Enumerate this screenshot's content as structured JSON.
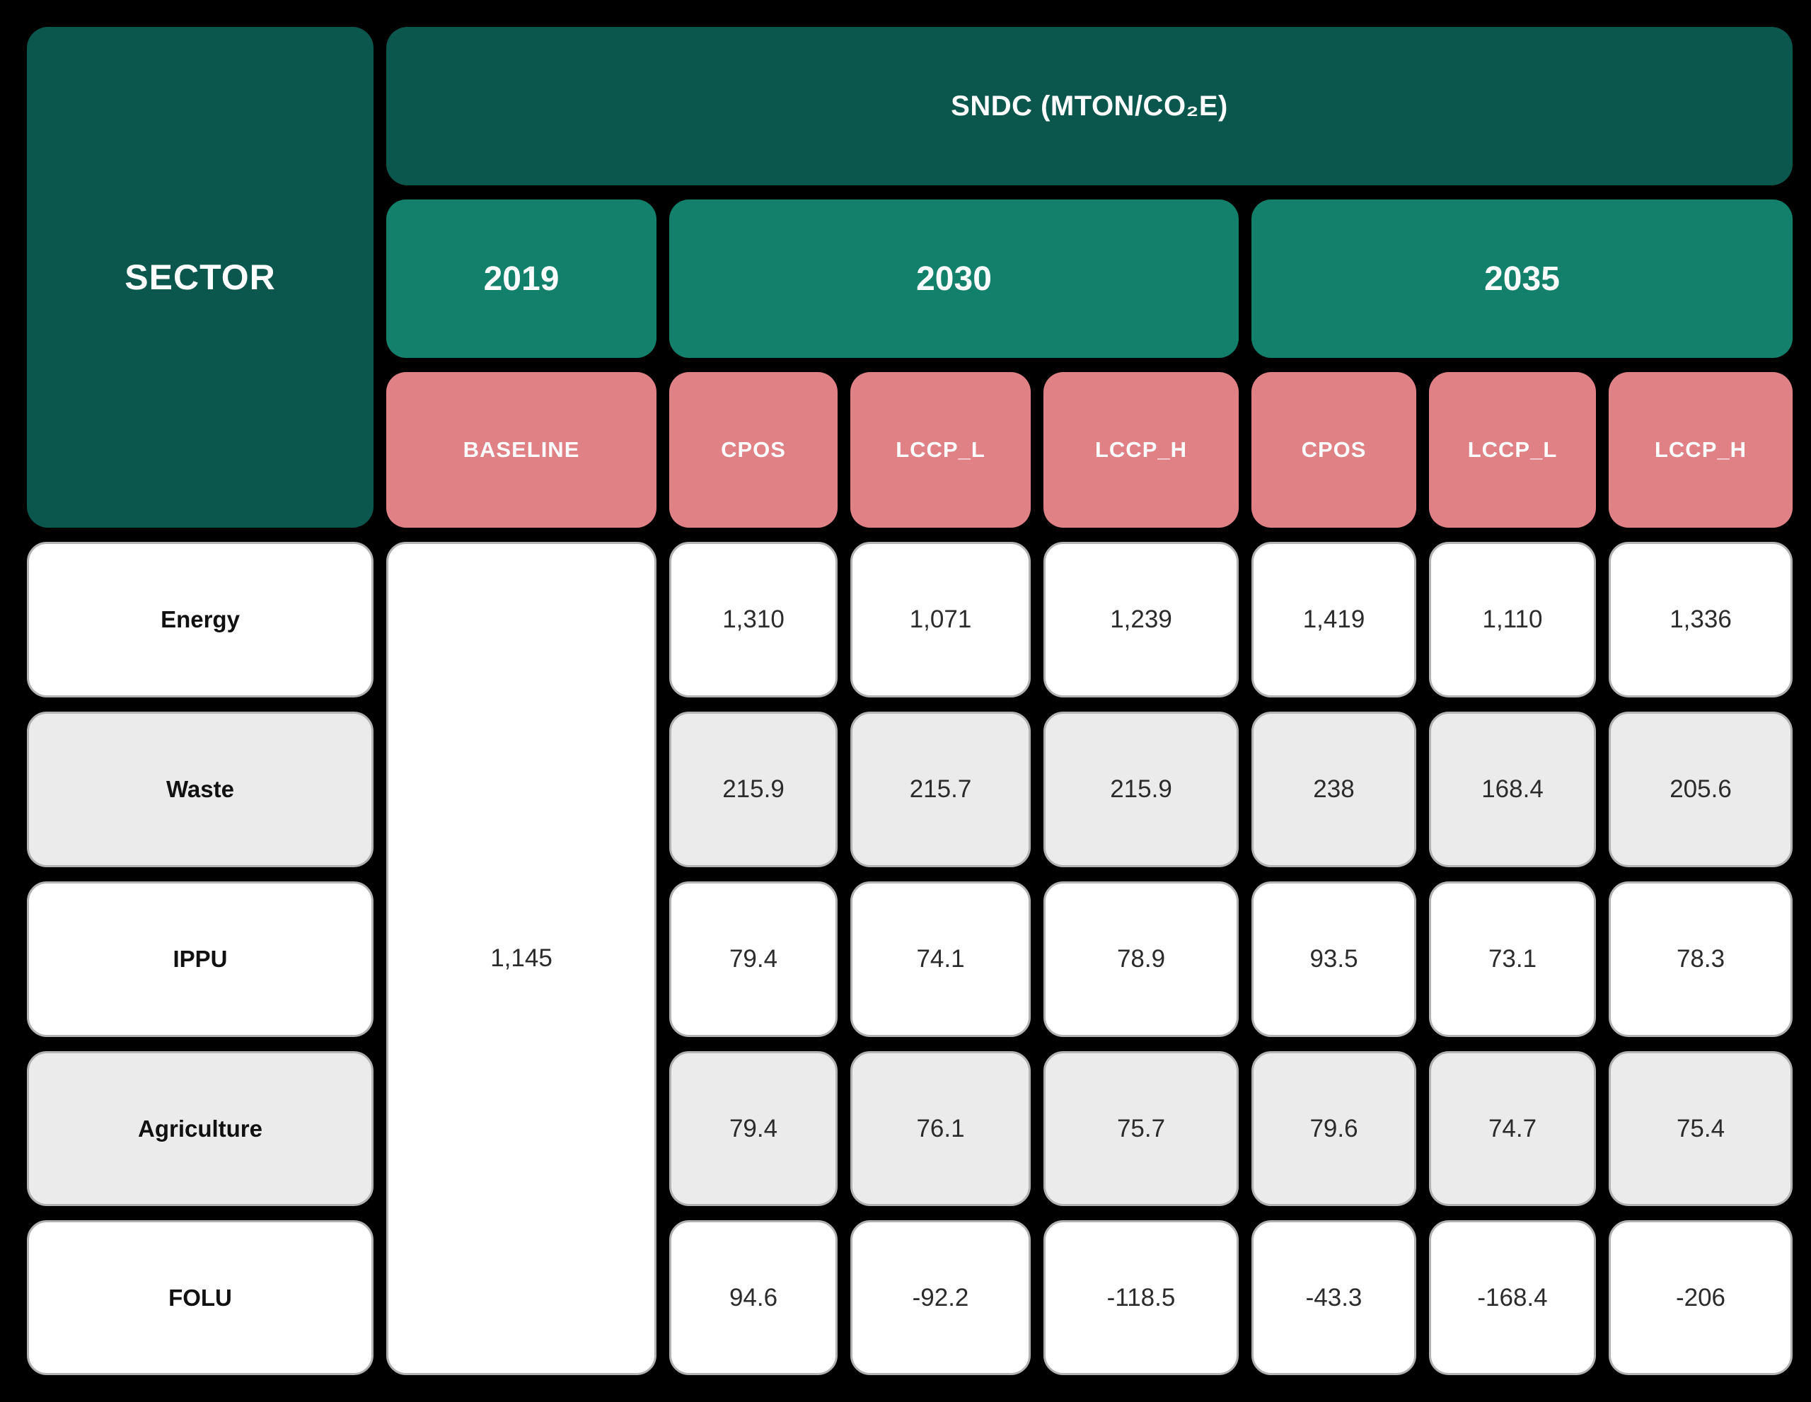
{
  "table": {
    "corner_header": "SECTOR",
    "unit_header": "SNDC (MTON/CO₂E)",
    "year_groups": [
      {
        "label": "2019",
        "scenarios": [
          "BASELINE"
        ]
      },
      {
        "label": "2030",
        "scenarios": [
          "CPOS",
          "LCCP_L",
          "LCCP_H"
        ]
      },
      {
        "label": "2035",
        "scenarios": [
          "CPOS",
          "LCCP_L",
          "LCCP_H"
        ]
      }
    ],
    "scenario_headers": [
      "BASELINE",
      "CPOS",
      "LCCP_L",
      "LCCP_H",
      "CPOS",
      "LCCP_L",
      "LCCP_H"
    ],
    "baseline_2019_value": "1,145",
    "rows": [
      {
        "sector": "Energy",
        "values": [
          "1,310",
          "1,071",
          "1,239",
          "1,419",
          "1,110",
          "1,336"
        ]
      },
      {
        "sector": "Waste",
        "values": [
          "215.9",
          "215.7",
          "215.9",
          "238",
          "168.4",
          "205.6"
        ]
      },
      {
        "sector": "IPPU",
        "values": [
          "79.4",
          "74.1",
          "78.9",
          "93.5",
          "73.1",
          "78.3"
        ]
      },
      {
        "sector": "Agriculture",
        "values": [
          "79.4",
          "76.1",
          "75.7",
          "79.6",
          "74.7",
          "75.4"
        ]
      },
      {
        "sector": "FOLU",
        "values": [
          "94.6",
          "-92.2",
          "-118.5",
          "-43.3",
          "-168.4",
          "-206"
        ]
      }
    ]
  },
  "chart_data": {
    "type": "table",
    "title": "SNDC (MTON/CO₂E)",
    "row_header": "SECTOR",
    "columns": [
      "2019 BASELINE",
      "2030 CPOS",
      "2030 LCCP_L",
      "2030 LCCP_H",
      "2035 CPOS",
      "2035 LCCP_L",
      "2035 LCCP_H"
    ],
    "rows": [
      {
        "sector": "Energy",
        "values": [
          null,
          1310,
          1071,
          1239,
          1419,
          1110,
          1336
        ]
      },
      {
        "sector": "Waste",
        "values": [
          null,
          215.9,
          215.7,
          215.9,
          238,
          168.4,
          205.6
        ]
      },
      {
        "sector": "IPPU",
        "values": [
          null,
          79.4,
          74.1,
          78.9,
          93.5,
          73.1,
          78.3
        ]
      },
      {
        "sector": "Agriculture",
        "values": [
          null,
          79.4,
          76.1,
          75.7,
          79.6,
          74.7,
          75.4
        ]
      },
      {
        "sector": "FOLU",
        "values": [
          null,
          94.6,
          -92.2,
          -118.5,
          -43.3,
          -168.4,
          -206
        ]
      }
    ],
    "merged_2019_baseline_total": 1145,
    "notes": "2019 BASELINE column is one merged cell (1,145) spanning all five sector rows"
  },
  "colors": {
    "background": "#000000",
    "header_dark_green": "#0b574d",
    "header_teal": "#12806b",
    "header_pink": "#e08186",
    "row_white": "#ffffff",
    "row_alt_gray": "#ebebeb",
    "cell_border": "#b2b2b2"
  }
}
